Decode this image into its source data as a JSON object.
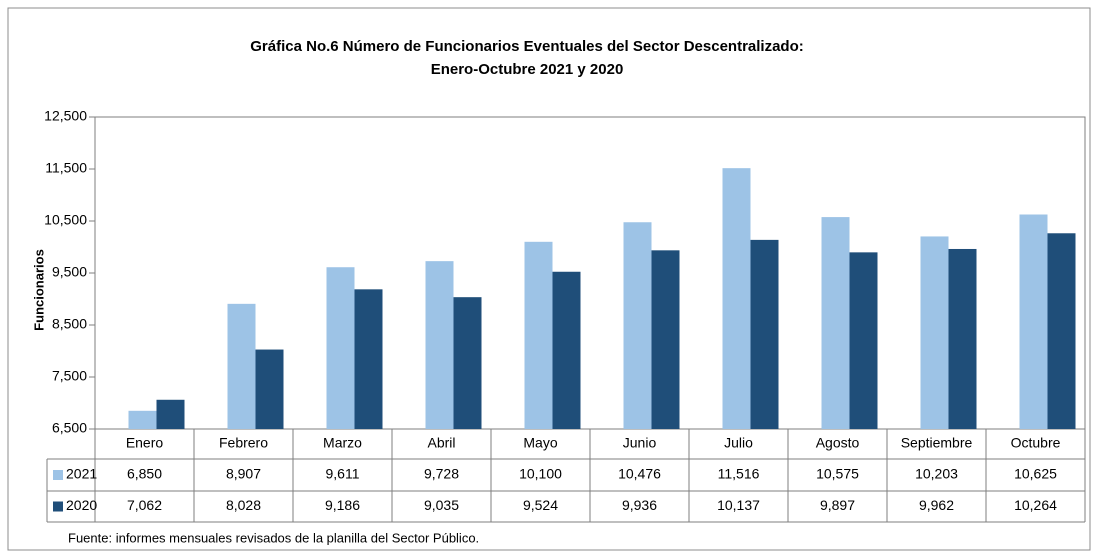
{
  "chart_data": {
    "type": "bar",
    "title": [
      "Gráfica No.6 Número de Funcionarios Eventuales del Sector Descentralizado:",
      "Enero-Octubre 2021 y 2020"
    ],
    "y_label": "Funcionarios",
    "categories": [
      "Enero",
      "Febrero",
      "Marzo",
      "Abril",
      "Mayo",
      "Junio",
      "Julio",
      "Agosto",
      "Septiembre",
      "Octubre"
    ],
    "series": [
      {
        "name": "2021",
        "color": "#9dc3e6",
        "values": [
          6850,
          8907,
          9611,
          9728,
          10100,
          10476,
          11516,
          10575,
          10203,
          10625
        ],
        "value_labels": [
          "6,850",
          "8,907",
          "9,611",
          "9,728",
          "10,100",
          "10,476",
          "11,516",
          "10,575",
          "10,203",
          "10,625"
        ]
      },
      {
        "name": "2020",
        "color": "#1f4e79",
        "values": [
          7062,
          8028,
          9186,
          9035,
          9524,
          9936,
          10137,
          9897,
          9962,
          10264
        ],
        "value_labels": [
          "7,062",
          "8,028",
          "9,186",
          "9,035",
          "9,524",
          "9,936",
          "10,137",
          "9,897",
          "9,962",
          "10,264"
        ]
      }
    ],
    "ylim": [
      6500,
      12500
    ],
    "yticks": [
      {
        "value": 6500,
        "label": "6,500"
      },
      {
        "value": 7500,
        "label": "7,500"
      },
      {
        "value": 8500,
        "label": "8,500"
      },
      {
        "value": 9500,
        "label": "9,500"
      },
      {
        "value": 10500,
        "label": "10,500"
      },
      {
        "value": 11500,
        "label": "11,500"
      },
      {
        "value": 12500,
        "label": "12,500"
      }
    ],
    "grid": false,
    "source": "Fuente: informes mensuales revisados de la planilla del Sector Público."
  }
}
